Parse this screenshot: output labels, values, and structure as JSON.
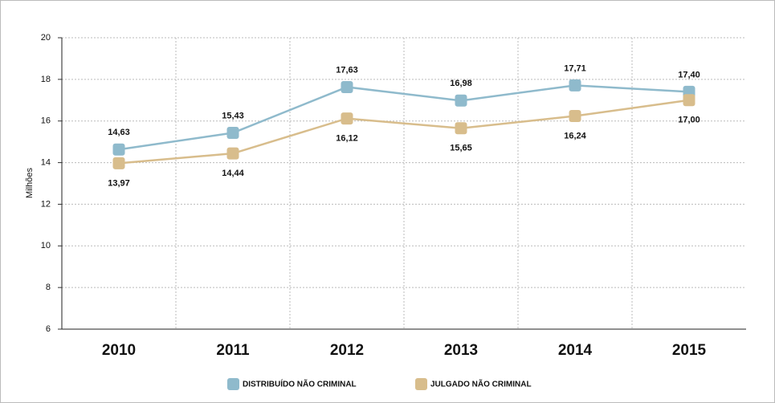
{
  "chart_data": {
    "type": "line",
    "y_label": "Milhões",
    "categories": [
      "2010",
      "2011",
      "2012",
      "2013",
      "2014",
      "2015"
    ],
    "series": [
      {
        "name": "DISTRIBUÍDO NÃO CRIMINAL",
        "color": "#8fbacc",
        "values": [
          14.63,
          15.43,
          17.63,
          16.98,
          17.71,
          17.4
        ],
        "value_labels": [
          "14,63",
          "15,43",
          "17,63",
          "16,98",
          "17,71",
          "17,40"
        ]
      },
      {
        "name": "JULGADO NÃO CRIMINAL",
        "color": "#d8bd8c",
        "values": [
          13.97,
          14.44,
          16.12,
          15.65,
          16.24,
          17.0
        ],
        "value_labels": [
          "13,97",
          "14,44",
          "16,12",
          "15,65",
          "16,24",
          "17,00"
        ]
      }
    ],
    "ylim": [
      6,
      20
    ],
    "yticks": [
      6,
      8,
      10,
      12,
      14,
      16,
      18,
      20
    ],
    "grid": true
  }
}
